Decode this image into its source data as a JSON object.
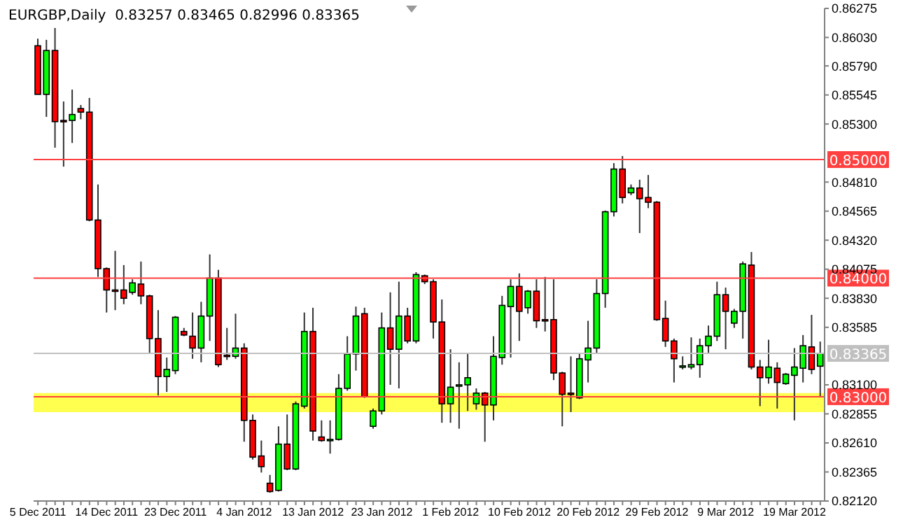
{
  "chart_data": {
    "type": "candlestick",
    "title": "EURGBP,Daily  0.83257 0.83465 0.82996 0.83365",
    "categories": [
      "5 Dec 2011",
      null,
      null,
      null,
      null,
      null,
      null,
      null,
      "14 Dec 2011",
      null,
      null,
      null,
      null,
      null,
      null,
      null,
      "23 Dec 2011",
      null,
      null,
      null,
      null,
      null,
      null,
      null,
      "4 Jan 2012",
      null,
      null,
      null,
      null,
      null,
      null,
      null,
      "13 Jan 2012",
      null,
      null,
      null,
      null,
      null,
      null,
      null,
      "23 Jan 2012",
      null,
      null,
      null,
      null,
      null,
      null,
      null,
      "1 Feb 2012",
      null,
      null,
      null,
      null,
      null,
      null,
      null,
      "10 Feb 2012",
      null,
      null,
      null,
      null,
      null,
      null,
      null,
      "20 Feb 2012",
      null,
      null,
      null,
      null,
      null,
      null,
      null,
      "29 Feb 2012",
      null,
      null,
      null,
      null,
      null,
      null,
      null,
      "9 Mar 2012",
      null,
      null,
      null,
      null,
      null,
      null,
      null,
      "19 Mar 2012",
      null,
      null,
      null
    ],
    "ohlc": [
      [
        0.8596,
        0.8602,
        0.8555,
        0.8555
      ],
      [
        0.8555,
        0.8601,
        0.8536,
        0.8592
      ],
      [
        0.8592,
        0.8611,
        0.851,
        0.8532
      ],
      [
        0.8533,
        0.8549,
        0.8494,
        0.8532
      ],
      [
        0.8533,
        0.8559,
        0.8514,
        0.8538
      ],
      [
        0.8543,
        0.8546,
        0.8534,
        0.854
      ],
      [
        0.854,
        0.8552,
        0.8448,
        0.8449
      ],
      [
        0.8449,
        0.8479,
        0.8401,
        0.8408
      ],
      [
        0.8408,
        0.8409,
        0.8371,
        0.839
      ],
      [
        0.839,
        0.8423,
        0.8373,
        0.8389
      ],
      [
        0.839,
        0.8411,
        0.8378,
        0.8383
      ],
      [
        0.8388,
        0.8399,
        0.8386,
        0.8396
      ],
      [
        0.8395,
        0.8414,
        0.8378,
        0.8385
      ],
      [
        0.8385,
        0.8386,
        0.8337,
        0.8349
      ],
      [
        0.8349,
        0.8373,
        0.8301,
        0.8317
      ],
      [
        0.8317,
        0.8333,
        0.8304,
        0.8323
      ],
      [
        0.8322,
        0.8368,
        0.8319,
        0.8367
      ],
      [
        0.8355,
        0.8358,
        0.8351,
        0.8352
      ],
      [
        0.8351,
        0.8371,
        0.8332,
        0.8341
      ],
      [
        0.8341,
        0.838,
        0.8329,
        0.8368
      ],
      [
        0.8368,
        0.842,
        0.8347,
        0.84
      ],
      [
        0.84,
        0.8407,
        0.8325,
        0.8327
      ],
      [
        0.8335,
        0.8358,
        0.8331,
        0.8334
      ],
      [
        0.8334,
        0.837,
        0.8332,
        0.8341
      ],
      [
        0.8341,
        0.8345,
        0.8262,
        0.828
      ],
      [
        0.828,
        0.8285,
        0.8247,
        0.8249
      ],
      [
        0.825,
        0.8263,
        0.8236,
        0.8241
      ],
      [
        0.8227,
        0.8234,
        0.8219,
        0.822
      ],
      [
        0.8221,
        0.8275,
        0.822,
        0.826
      ],
      [
        0.826,
        0.8285,
        0.8238,
        0.8239
      ],
      [
        0.8239,
        0.8296,
        0.8238,
        0.8294
      ],
      [
        0.8292,
        0.8371,
        0.829,
        0.8355
      ],
      [
        0.8355,
        0.8375,
        0.8263,
        0.8271
      ],
      [
        0.8266,
        0.828,
        0.8262,
        0.8263
      ],
      [
        0.8263,
        0.828,
        0.8252,
        0.8264
      ],
      [
        0.8264,
        0.8319,
        0.8263,
        0.8307
      ],
      [
        0.8307,
        0.8351,
        0.8305,
        0.8336
      ],
      [
        0.8336,
        0.8376,
        0.8322,
        0.8368
      ],
      [
        0.837,
        0.8375,
        0.8299,
        0.83
      ],
      [
        0.8275,
        0.829,
        0.8273,
        0.8288
      ],
      [
        0.8288,
        0.8371,
        0.8285,
        0.8358
      ],
      [
        0.8358,
        0.8388,
        0.831,
        0.834
      ],
      [
        0.834,
        0.8397,
        0.8307,
        0.8368
      ],
      [
        0.8368,
        0.8375,
        0.8345,
        0.8347
      ],
      [
        0.8347,
        0.8405,
        0.8345,
        0.8403
      ],
      [
        0.8402,
        0.8403,
        0.8395,
        0.8397
      ],
      [
        0.8397,
        0.8399,
        0.8349,
        0.8363
      ],
      [
        0.8363,
        0.8382,
        0.8278,
        0.8294
      ],
      [
        0.8294,
        0.834,
        0.8278,
        0.8308
      ],
      [
        0.8309,
        0.8329,
        0.8273,
        0.831
      ],
      [
        0.831,
        0.8336,
        0.8288,
        0.8316
      ],
      [
        0.8294,
        0.8307,
        0.8289,
        0.8303
      ],
      [
        0.8303,
        0.8304,
        0.8262,
        0.8293
      ],
      [
        0.8293,
        0.8351,
        0.828,
        0.8334
      ],
      [
        0.8333,
        0.8385,
        0.8327,
        0.8377
      ],
      [
        0.8376,
        0.8399,
        0.8333,
        0.8393
      ],
      [
        0.8393,
        0.8404,
        0.8347,
        0.8372
      ],
      [
        0.8375,
        0.839,
        0.837,
        0.8389
      ],
      [
        0.8389,
        0.8399,
        0.8358,
        0.8364
      ],
      [
        0.8365,
        0.8401,
        0.8355,
        0.8364
      ],
      [
        0.8365,
        0.8399,
        0.8314,
        0.832
      ],
      [
        0.832,
        0.8321,
        0.8275,
        0.8302
      ],
      [
        0.8303,
        0.8334,
        0.8287,
        0.8302
      ],
      [
        0.8299,
        0.8336,
        0.8298,
        0.8332
      ],
      [
        0.8331,
        0.8364,
        0.8312,
        0.8341
      ],
      [
        0.8341,
        0.8399,
        0.8336,
        0.8387
      ],
      [
        0.8387,
        0.8457,
        0.8375,
        0.8456
      ],
      [
        0.8456,
        0.8497,
        0.8452,
        0.8492
      ],
      [
        0.8492,
        0.8503,
        0.8463,
        0.8468
      ],
      [
        0.8472,
        0.8479,
        0.847,
        0.8476
      ],
      [
        0.8476,
        0.8483,
        0.8438,
        0.8467
      ],
      [
        0.8468,
        0.8487,
        0.8459,
        0.8464
      ],
      [
        0.8464,
        0.8465,
        0.8364,
        0.8365
      ],
      [
        0.8366,
        0.8381,
        0.8342,
        0.8347
      ],
      [
        0.8347,
        0.8349,
        0.8312,
        0.8332
      ],
      [
        0.8325,
        0.8334,
        0.8323,
        0.8326
      ],
      [
        0.8325,
        0.835,
        0.8323,
        0.8327
      ],
      [
        0.8327,
        0.8349,
        0.8316,
        0.8343
      ],
      [
        0.8343,
        0.836,
        0.8337,
        0.8351
      ],
      [
        0.8351,
        0.8397,
        0.8347,
        0.8386
      ],
      [
        0.8386,
        0.8392,
        0.834,
        0.8372
      ],
      [
        0.8362,
        0.8374,
        0.8358,
        0.8372
      ],
      [
        0.8372,
        0.8414,
        0.8349,
        0.8412
      ],
      [
        0.8411,
        0.8422,
        0.8323,
        0.8325
      ],
      [
        0.8325,
        0.8331,
        0.8292,
        0.8316
      ],
      [
        0.8316,
        0.8348,
        0.8311,
        0.8325
      ],
      [
        0.8324,
        0.8329,
        0.829,
        0.8312
      ],
      [
        0.8311,
        0.832,
        0.831,
        0.8319
      ],
      [
        0.8318,
        0.8341,
        0.828,
        0.8325
      ],
      [
        0.8324,
        0.8352,
        0.8312,
        0.8343
      ],
      [
        0.8342,
        0.8369,
        0.8319,
        0.8323
      ],
      [
        0.83257,
        0.83465,
        0.82996,
        0.83365
      ]
    ],
    "colors": [
      "#ff0000",
      "#00ff00",
      "#ff0000",
      "#ff0000",
      "#00ff00",
      "#ff0000",
      "#ff0000",
      "#ff0000",
      "#ff0000",
      "#ff0000",
      "#ff0000",
      "#00ff00",
      "#ff0000",
      "#ff0000",
      "#ff0000",
      "#00ff00",
      "#00ff00",
      "#ff0000",
      "#ff0000",
      "#00ff00",
      "#00ff00",
      "#ff0000",
      "#ff0000",
      "#00ff00",
      "#ff0000",
      "#ff0000",
      "#ff0000",
      "#ff0000",
      "#00ff00",
      "#ff0000",
      "#00ff00",
      "#00ff00",
      "#ff0000",
      "#ff0000",
      "#00ff00",
      "#00ff00",
      "#00ff00",
      "#00ff00",
      "#ff0000",
      "#00ff00",
      "#00ff00",
      "#ff0000",
      "#00ff00",
      "#ff0000",
      "#00ff00",
      "#ff0000",
      "#ff0000",
      "#ff0000",
      "#00ff00",
      "#00ff00",
      "#00ff00",
      "#00ff00",
      "#ff0000",
      "#00ff00",
      "#00ff00",
      "#00ff00",
      "#ff0000",
      "#00ff00",
      "#ff0000",
      "#ff0000",
      "#ff0000",
      "#ff0000",
      "#ff0000",
      "#00ff00",
      "#00ff00",
      "#00ff00",
      "#00ff00",
      "#00ff00",
      "#ff0000",
      "#00ff00",
      "#ff0000",
      "#ff0000",
      "#ff0000",
      "#ff0000",
      "#ff0000",
      "#00ff00",
      "#00ff00",
      "#00ff00",
      "#00ff00",
      "#00ff00",
      "#ff0000",
      "#00ff00",
      "#00ff00",
      "#ff0000",
      "#ff0000",
      "#00ff00",
      "#ff0000",
      "#00ff00",
      "#00ff00",
      "#00ff00",
      "#ff0000",
      "#00ff00"
    ],
    "ylim": [
      0.8212,
      0.86275
    ],
    "yticks": [
      {
        "value": 0.8212,
        "label": "0.82120"
      },
      {
        "value": 0.82365,
        "label": "0.82365"
      },
      {
        "value": 0.8261,
        "label": "0.82610"
      },
      {
        "value": 0.82855,
        "label": "0.82855"
      },
      {
        "value": 0.831,
        "label": "0.83100"
      },
      {
        "value": 0.83585,
        "label": "0.83585"
      },
      {
        "value": 0.8383,
        "label": "0.83830"
      },
      {
        "value": 0.84075,
        "label": "0.84075"
      },
      {
        "value": 0.8432,
        "label": "0.84320"
      },
      {
        "value": 0.84565,
        "label": "0.84565"
      },
      {
        "value": 0.8481,
        "label": "0.84810"
      },
      {
        "value": 0.853,
        "label": "0.85300"
      },
      {
        "value": 0.85545,
        "label": "0.85545"
      },
      {
        "value": 0.8579,
        "label": "0.85790"
      },
      {
        "value": 0.8603,
        "label": "0.86030"
      },
      {
        "value": 0.86275,
        "label": "0.86275"
      }
    ],
    "ref_lines": [
      {
        "axis": "y",
        "value": 0.85,
        "label": "0.85000",
        "color": "#ff4040"
      },
      {
        "axis": "y",
        "value": 0.84,
        "label": "0.84000",
        "color": "#ff4040"
      },
      {
        "axis": "y",
        "value": 0.83,
        "label": "0.83000",
        "color": "#ff4040"
      },
      {
        "axis": "y",
        "value": 0.83365,
        "label": "0.83365",
        "color": "#c0c0c0"
      }
    ],
    "bands": [
      {
        "axis": "y",
        "from": 0.8287,
        "to": 0.8303,
        "color": "#ffff50"
      }
    ],
    "grid": false,
    "legend": false
  }
}
